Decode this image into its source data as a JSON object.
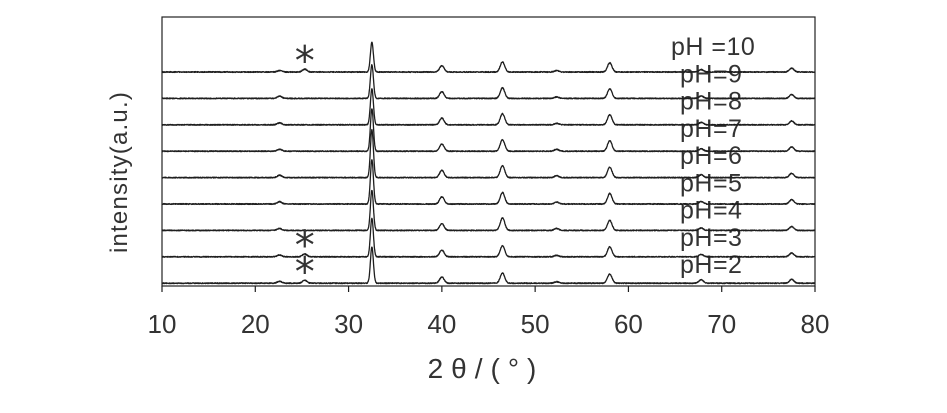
{
  "chart_data": {
    "type": "line",
    "stacked": true,
    "xlabel": "2θ/(°)",
    "ylabel": "intensity(a.u.)",
    "xlim": [
      10,
      80
    ],
    "xticks": [
      "10",
      "20",
      "30",
      "40",
      "50",
      "60",
      "70",
      "80"
    ],
    "grid": false,
    "legend": "right",
    "colors": {
      "line": "#1e1e1e"
    },
    "series": [
      {
        "name": "pH =10",
        "peaks": [
          {
            "x": 22.6,
            "y": 3
          },
          {
            "x": 25.3,
            "y": 6
          },
          {
            "x": 32.5,
            "y": 62
          },
          {
            "x": 40.0,
            "y": 13
          },
          {
            "x": 46.5,
            "y": 21
          },
          {
            "x": 52.3,
            "y": 3
          },
          {
            "x": 58.0,
            "y": 19
          },
          {
            "x": 67.8,
            "y": 5
          },
          {
            "x": 77.5,
            "y": 8
          }
        ]
      },
      {
        "name": "pH=9",
        "peaks": [
          {
            "x": 22.6,
            "y": 5
          },
          {
            "x": 32.5,
            "y": 70
          },
          {
            "x": 40.0,
            "y": 14
          },
          {
            "x": 46.5,
            "y": 22
          },
          {
            "x": 52.3,
            "y": 3
          },
          {
            "x": 58.0,
            "y": 20
          },
          {
            "x": 67.8,
            "y": 5
          },
          {
            "x": 77.5,
            "y": 8
          }
        ]
      },
      {
        "name": "pH=8",
        "peaks": [
          {
            "x": 22.6,
            "y": 4
          },
          {
            "x": 32.5,
            "y": 75
          },
          {
            "x": 40.0,
            "y": 14
          },
          {
            "x": 46.5,
            "y": 23
          },
          {
            "x": 52.3,
            "y": 3
          },
          {
            "x": 58.0,
            "y": 21
          },
          {
            "x": 67.8,
            "y": 5
          },
          {
            "x": 77.5,
            "y": 8
          }
        ]
      },
      {
        "name": "pH=7",
        "peaks": [
          {
            "x": 22.6,
            "y": 4
          },
          {
            "x": 32.5,
            "y": 88
          },
          {
            "x": 40.0,
            "y": 15
          },
          {
            "x": 46.5,
            "y": 24
          },
          {
            "x": 52.3,
            "y": 4
          },
          {
            "x": 58.0,
            "y": 22
          },
          {
            "x": 67.8,
            "y": 5
          },
          {
            "x": 77.5,
            "y": 9
          }
        ]
      },
      {
        "name": "pH=6",
        "peaks": [
          {
            "x": 22.6,
            "y": 5
          },
          {
            "x": 32.5,
            "y": 100
          },
          {
            "x": 40.0,
            "y": 15
          },
          {
            "x": 46.5,
            "y": 25
          },
          {
            "x": 52.3,
            "y": 4
          },
          {
            "x": 58.0,
            "y": 22
          },
          {
            "x": 67.8,
            "y": 6
          },
          {
            "x": 77.5,
            "y": 9
          }
        ]
      },
      {
        "name": "pH=5",
        "peaks": [
          {
            "x": 22.6,
            "y": 5
          },
          {
            "x": 32.5,
            "y": 92
          },
          {
            "x": 40.0,
            "y": 15
          },
          {
            "x": 46.5,
            "y": 24
          },
          {
            "x": 52.3,
            "y": 4
          },
          {
            "x": 58.0,
            "y": 22
          },
          {
            "x": 67.8,
            "y": 5
          },
          {
            "x": 77.5,
            "y": 9
          }
        ]
      },
      {
        "name": "pH=4",
        "peaks": [
          {
            "x": 22.6,
            "y": 4
          },
          {
            "x": 32.5,
            "y": 83
          },
          {
            "x": 40.0,
            "y": 14
          },
          {
            "x": 46.5,
            "y": 26
          },
          {
            "x": 52.3,
            "y": 4
          },
          {
            "x": 58.0,
            "y": 21
          },
          {
            "x": 67.8,
            "y": 5
          },
          {
            "x": 77.5,
            "y": 8
          }
        ]
      },
      {
        "name": "pH=3",
        "peaks": [
          {
            "x": 22.6,
            "y": 4
          },
          {
            "x": 25.3,
            "y": 6
          },
          {
            "x": 32.5,
            "y": 80
          },
          {
            "x": 40.0,
            "y": 14
          },
          {
            "x": 46.5,
            "y": 23
          },
          {
            "x": 52.3,
            "y": 3
          },
          {
            "x": 58.0,
            "y": 21
          },
          {
            "x": 67.8,
            "y": 5
          },
          {
            "x": 77.5,
            "y": 8
          }
        ]
      },
      {
        "name": "pH=2",
        "peaks": [
          {
            "x": 22.6,
            "y": 4
          },
          {
            "x": 25.3,
            "y": 6
          },
          {
            "x": 32.5,
            "y": 75
          },
          {
            "x": 40.0,
            "y": 13
          },
          {
            "x": 46.5,
            "y": 21
          },
          {
            "x": 52.3,
            "y": 3
          },
          {
            "x": 58.0,
            "y": 19
          },
          {
            "x": 67.8,
            "y": 7
          },
          {
            "x": 77.5,
            "y": 8
          }
        ]
      }
    ],
    "annotations": [
      {
        "text": "*",
        "x": 25.3,
        "series": "pH =10"
      },
      {
        "text": "*",
        "x": 25.3,
        "series": "pH=3"
      },
      {
        "text": "*",
        "x": 25.3,
        "series": "pH=2"
      }
    ]
  }
}
